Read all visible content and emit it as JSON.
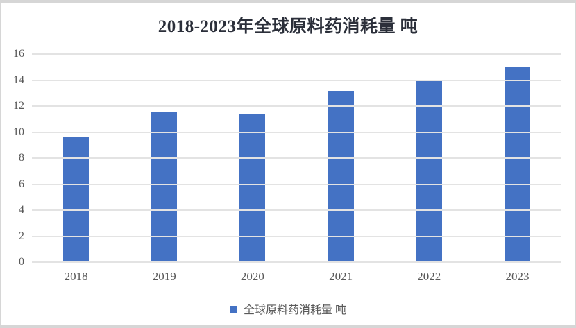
{
  "chart_data": {
    "type": "bar",
    "title": "2018-2023年全球原料药消耗量 吨",
    "categories": [
      "2018",
      "2019",
      "2020",
      "2021",
      "2022",
      "2023"
    ],
    "series": [
      {
        "name": "全球原料药消耗量 吨",
        "values": [
          9.6,
          11.5,
          11.4,
          13.2,
          13.9,
          15.0
        ]
      }
    ],
    "xlabel": "",
    "ylabel": "",
    "ylim": [
      0,
      16
    ],
    "y_ticks": [
      0,
      2,
      4,
      6,
      8,
      10,
      12,
      14,
      16
    ],
    "grid": true,
    "legend_position": "bottom",
    "colors": {
      "bar": "#4472c4",
      "gridline": "#e3e3e3",
      "tick_label": "#595959",
      "title": "#2b2f3a",
      "frame_border": "#d6d6d6"
    },
    "legend_swatch_icon": "blue-square-icon"
  }
}
